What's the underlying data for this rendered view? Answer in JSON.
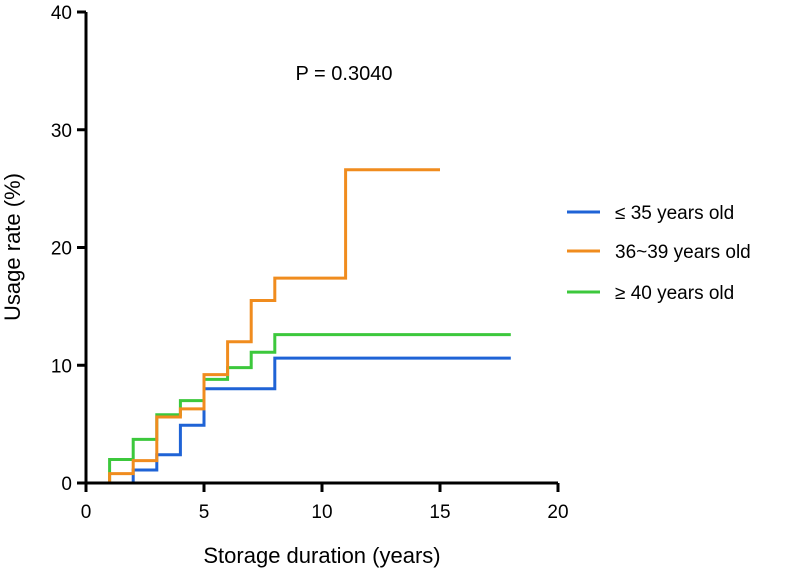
{
  "chart_data": {
    "type": "line",
    "step": true,
    "title": "",
    "xlabel": "Storage duration (years)",
    "ylabel": "Usage rate (%)",
    "xlim": [
      0,
      20
    ],
    "ylim": [
      0,
      40
    ],
    "xticks": [
      0,
      5,
      10,
      15,
      20
    ],
    "yticks": [
      0,
      10,
      20,
      30,
      40
    ],
    "grid": false,
    "legend_position": "right",
    "annotation": "P = 0.3040",
    "series": [
      {
        "name": "≤ 35 years old",
        "color": "#1f63d6",
        "x": [
          0,
          2,
          3,
          4,
          5,
          8,
          18
        ],
        "y": [
          0,
          1.1,
          2.4,
          4.9,
          8.0,
          10.6,
          10.6
        ]
      },
      {
        "name": "36~39 years old",
        "color": "#f08c1e",
        "x": [
          0,
          1,
          2,
          3,
          4,
          5,
          6,
          7,
          8,
          11,
          15
        ],
        "y": [
          0,
          0.8,
          1.9,
          5.6,
          6.3,
          9.2,
          12.0,
          15.5,
          17.4,
          26.6,
          26.6
        ]
      },
      {
        "name": "≥ 40 years old",
        "color": "#3cc83c",
        "x": [
          0,
          1,
          2,
          3,
          4,
          5,
          6,
          7,
          8,
          18
        ],
        "y": [
          0,
          2.0,
          3.7,
          5.8,
          7.0,
          8.8,
          9.8,
          11.1,
          12.6,
          12.6
        ]
      }
    ]
  }
}
